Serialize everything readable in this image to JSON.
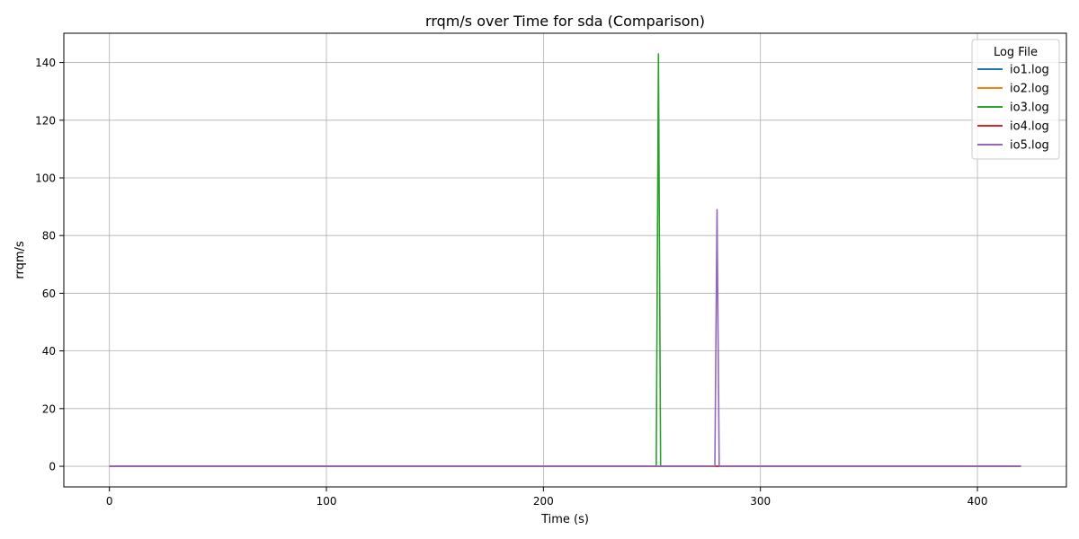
{
  "chart_data": {
    "type": "line",
    "title": "rrqm/s over Time for sda (Comparison)",
    "xlabel": "Time (s)",
    "ylabel": "rrqm/s",
    "xlim": [
      -21,
      441
    ],
    "ylim": [
      -7.15,
      150.15
    ],
    "x_ticks": [
      0,
      100,
      200,
      300,
      400
    ],
    "y_ticks": [
      0,
      20,
      40,
      60,
      80,
      100,
      120,
      140
    ],
    "grid": true,
    "legend": {
      "title": "Log File",
      "placement": "top-right"
    },
    "series": [
      {
        "name": "io1.log",
        "color": "#1f77b4",
        "x": [
          0,
          420
        ],
        "y": [
          0,
          0
        ]
      },
      {
        "name": "io2.log",
        "color": "#ff7f0e",
        "x": [
          0,
          420
        ],
        "y": [
          0,
          0
        ]
      },
      {
        "name": "io3.log",
        "color": "#2ca02c",
        "x": [
          0,
          252,
          253,
          254,
          255,
          256,
          420
        ],
        "y": [
          0,
          0,
          143,
          0,
          0,
          0,
          0
        ]
      },
      {
        "name": "io4.log",
        "color": "#d62728",
        "x": [
          0,
          420
        ],
        "y": [
          0,
          0
        ]
      },
      {
        "name": "io5.log",
        "color": "#9467bd",
        "x": [
          0,
          279,
          280,
          281,
          420
        ],
        "y": [
          0,
          0,
          89,
          0,
          0
        ]
      }
    ]
  }
}
